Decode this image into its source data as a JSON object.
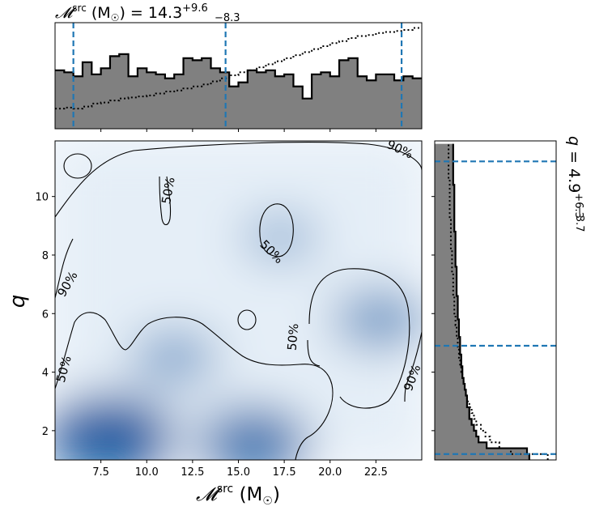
{
  "colors": {
    "hist_fill": "#808080",
    "quantile_line": "#1f77b4",
    "contour": "#000000",
    "density": "#08519c"
  },
  "chart_data": [
    {
      "id": "mchirp_marginal",
      "type": "histogram",
      "title_text": "𝓜",
      "title_sup": "src",
      "title_unit": "(M",
      "title_sun": "☉",
      "title_close": ")",
      "title_value": "= 14.3",
      "title_upper": "+9.6",
      "title_lower": "−8.3",
      "xlim": [
        5.0,
        25.0
      ],
      "bin_edges_start": 5.0,
      "bin_width": 0.5,
      "posterior_counts": [
        0.58,
        0.56,
        0.52,
        0.66,
        0.54,
        0.6,
        0.72,
        0.74,
        0.52,
        0.6,
        0.56,
        0.54,
        0.5,
        0.54,
        0.7,
        0.68,
        0.7,
        0.6,
        0.56,
        0.42,
        0.46,
        0.58,
        0.56,
        0.58,
        0.52,
        0.54,
        0.42,
        0.3,
        0.54,
        0.56,
        0.52,
        0.68,
        0.7,
        0.52,
        0.48,
        0.54,
        0.54,
        0.48,
        0.52,
        0.5
      ],
      "prior_counts": [
        0.2,
        0.21,
        0.2,
        0.22,
        0.25,
        0.26,
        0.28,
        0.3,
        0.31,
        0.32,
        0.33,
        0.35,
        0.37,
        0.38,
        0.4,
        0.42,
        0.44,
        0.47,
        0.5,
        0.53,
        0.56,
        0.58,
        0.61,
        0.64,
        0.67,
        0.7,
        0.73,
        0.76,
        0.79,
        0.82,
        0.85,
        0.87,
        0.9,
        0.92,
        0.93,
        0.95,
        0.96,
        0.97,
        0.98,
        1.0
      ],
      "quantiles": [
        6.0,
        14.3,
        23.9
      ]
    },
    {
      "id": "joint_density",
      "type": "heatmap",
      "xlabel_text": "𝓜",
      "xlabel_sup": "src",
      "xlabel_unit": "(M",
      "xlabel_sun": "☉",
      "xlabel_close": ")",
      "ylabel": "q",
      "xlim": [
        5.0,
        25.0
      ],
      "ylim": [
        1.0,
        11.9
      ],
      "x_ticks": [
        7.5,
        10.0,
        12.5,
        15.0,
        17.5,
        20.0,
        22.5
      ],
      "x_tick_labels": [
        "7.5",
        "10.0",
        "12.5",
        "15.0",
        "17.5",
        "20.0",
        "22.5"
      ],
      "y_ticks": [
        2,
        4,
        6,
        8,
        10
      ],
      "y_tick_labels": [
        "2",
        "4",
        "6",
        "8",
        "10"
      ],
      "density_peaks": [
        {
          "x": 8.0,
          "y": 1.8,
          "weight": 1.0
        },
        {
          "x": 15.8,
          "y": 1.6,
          "weight": 0.75
        },
        {
          "x": 11.5,
          "y": 4.5,
          "weight": 0.35
        },
        {
          "x": 22.7,
          "y": 5.8,
          "weight": 0.45
        },
        {
          "x": 17.3,
          "y": 8.6,
          "weight": 0.2
        }
      ],
      "contour_labels": [
        {
          "text": "90%",
          "x": 23.8,
          "y": 11.6,
          "angle": 25
        },
        {
          "text": "50%",
          "x": 11.2,
          "y": 10.2,
          "angle": -80
        },
        {
          "text": "50%",
          "x": 16.8,
          "y": 8.1,
          "angle": 45
        },
        {
          "text": "90%",
          "x": 5.7,
          "y": 7.0,
          "angle": -60
        },
        {
          "text": "50%",
          "x": 18.0,
          "y": 5.2,
          "angle": -85
        },
        {
          "text": "50%",
          "x": 5.5,
          "y": 4.1,
          "angle": -75
        },
        {
          "text": "90%",
          "x": 24.5,
          "y": 3.8,
          "angle": -70
        }
      ]
    },
    {
      "id": "q_marginal",
      "type": "histogram",
      "orientation": "horizontal",
      "title_text": "q",
      "title_value": "= 4.9",
      "title_upper": "+6.3",
      "title_lower": "−3.7",
      "ylim": [
        1.0,
        11.9
      ],
      "bin_edges_start": 1.0,
      "bin_width": 0.2,
      "posterior_counts": [
        0.82,
        0.8,
        0.45,
        0.38,
        0.36,
        0.34,
        0.32,
        0.3,
        0.3,
        0.28,
        0.28,
        0.27,
        0.26,
        0.25,
        0.24,
        0.24,
        0.23,
        0.23,
        0.22,
        0.22,
        0.22,
        0.21,
        0.21,
        0.21,
        0.2,
        0.2,
        0.2,
        0.2,
        0.19,
        0.19,
        0.19,
        0.19,
        0.19,
        0.18,
        0.18,
        0.18,
        0.18,
        0.18,
        0.18,
        0.17,
        0.17,
        0.17,
        0.17,
        0.17,
        0.17,
        0.17,
        0.17,
        0.16,
        0.16,
        0.16,
        0.16,
        0.16,
        0.16,
        0.16
      ],
      "prior_counts": [
        0.98,
        0.66,
        0.56,
        0.48,
        0.44,
        0.4,
        0.36,
        0.34,
        0.32,
        0.3,
        0.28,
        0.27,
        0.26,
        0.25,
        0.24,
        0.23,
        0.22,
        0.21,
        0.21,
        0.2,
        0.2,
        0.19,
        0.19,
        0.18,
        0.18,
        0.17,
        0.17,
        0.17,
        0.16,
        0.16,
        0.16,
        0.16,
        0.15,
        0.15,
        0.15,
        0.15,
        0.14,
        0.14,
        0.14,
        0.14,
        0.14,
        0.13,
        0.13,
        0.13,
        0.13,
        0.13,
        0.13,
        0.13,
        0.12,
        0.12,
        0.12,
        0.12,
        0.12,
        0.12
      ],
      "quantiles": [
        1.2,
        4.9,
        11.2
      ]
    }
  ]
}
